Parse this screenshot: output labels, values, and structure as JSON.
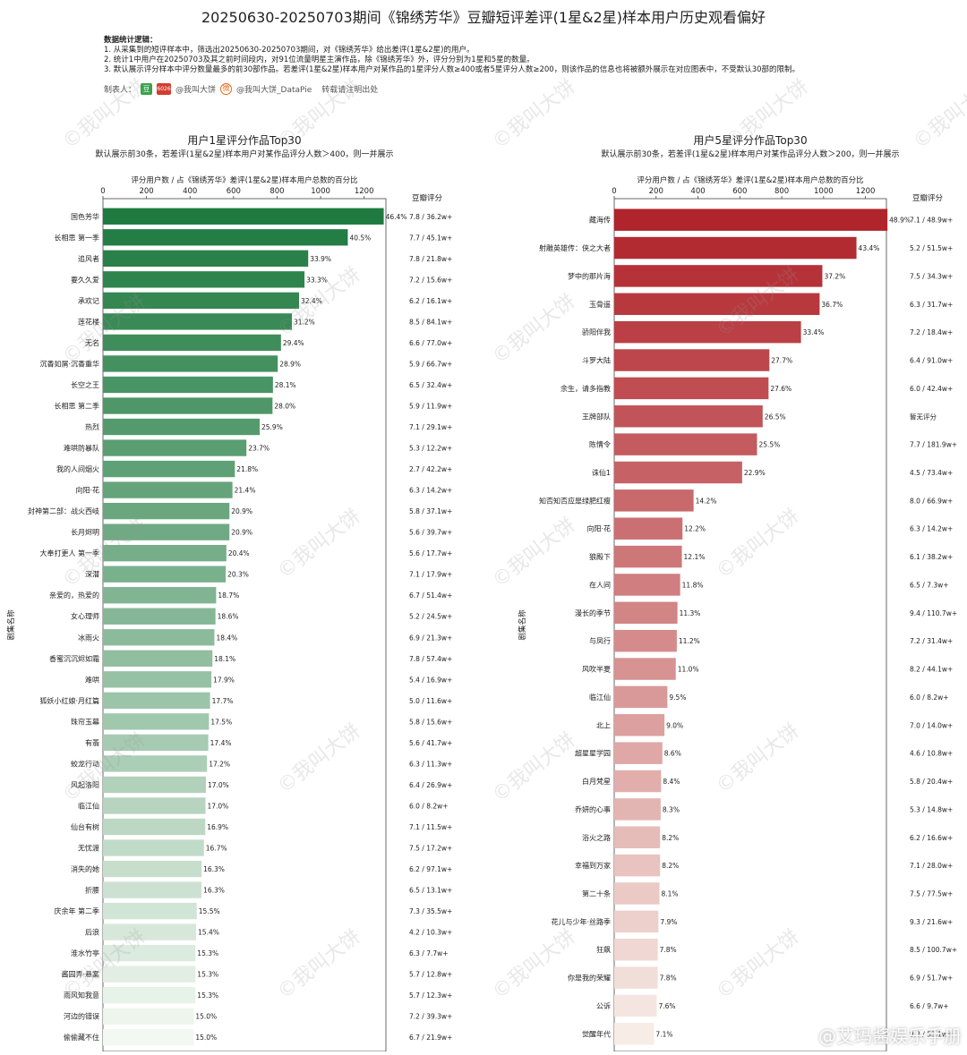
{
  "page": {
    "title": "20250630-20250703期间《锦绣芳华》豆瓣短评差评(1星&2星)样本用户历史观看偏好",
    "notes_head": "数据统计逻辑：",
    "notes": [
      "1. 从采集到的短评样本中，筛选出20250630-20250703期间，对《锦绣芳华》给出差评(1星&2星)的用户。",
      "2. 统计1中用户在20250703及其之前时间段内，对91位流量明星主演作品，除《锦绣芳华》外，评分分别为1星和5星的数量。",
      "3. 默认展示评分样本中评分数量最多的前30部作品。若差评(1星&2星)样本用户对某作品的1星评分人数≥400或者5星评分人数≥200，则该作品的信息也将被额外展示在对应图表中，不受默认30部的限制。"
    ],
    "credit_label": "制表人：",
    "credit_icon1": "豆",
    "credit_icon2": "6026",
    "credit_author": "@我叫大饼",
    "credit_weibo_icon": "微",
    "credit_weibo": "@我叫大饼_DataPie",
    "credit_note": "转载请注明出处",
    "watermark": "©我叫大饼",
    "corner_watermark": "@艾玛酱娱乐手册"
  },
  "chart_data": [
    {
      "type": "bar",
      "orientation": "horizontal",
      "title": "用户1星评分作品Top30",
      "subtitle": "默认展示前30条，若差评(1星&2星)样本用户对某作品评分人数＞400，则一并展示",
      "xlabel": "评分用户数 / 占《锦绣芳华》差评(1星&2星)样本用户总数的百分比",
      "ylabel": "剧集名称",
      "side_header": "豆瓣评分",
      "xlim": [
        0,
        1300
      ],
      "xticks": [
        0,
        200,
        400,
        600,
        800,
        1000,
        1200
      ],
      "color_scheme": "green",
      "color_dark": "#1e7a3f",
      "color_light": "#f2f8f2",
      "categories": [
        "国色芳华",
        "长相思 第一季",
        "追风者",
        "要久久爱",
        "承欢记",
        "莲花楼",
        "无名",
        "沉香如屑·沉香重华",
        "长空之王",
        "长相思 第二季",
        "热烈",
        "难哄防暴队",
        "我的人间烟火",
        "向阳·花",
        "封神第二部：战火西岐",
        "长月烬明",
        "大奉打更人 第一季",
        "深潜",
        "亲爱的，热爱的",
        "女心理师",
        "冰雨火",
        "香蜜沉沉烬如霜",
        "难哄",
        "狐妖小红娘·月红篇",
        "珠帘玉幕",
        "有翡",
        "蛟龙行动",
        "风起洛阳",
        "临江仙",
        "仙台有树",
        "无忧渡",
        "消失的她",
        "折腰",
        "庆余年 第二季",
        "后浪",
        "淮水竹亭",
        "酱园弄·悬案",
        "雨风知我意",
        "河边的错误",
        "偷偷藏不住"
      ],
      "values": [
        1290,
        1125,
        943,
        926,
        901,
        868,
        818,
        803,
        781,
        779,
        720,
        659,
        606,
        595,
        581,
        581,
        567,
        564,
        520,
        517,
        512,
        503,
        498,
        492,
        487,
        484,
        478,
        473,
        471,
        470,
        464,
        453,
        453,
        431,
        428,
        425,
        425,
        425,
        417,
        417
      ],
      "pct_labels": [
        "46.4%",
        "40.5%",
        "33.9%",
        "33.3%",
        "32.4%",
        "31.2%",
        "29.4%",
        "28.9%",
        "28.1%",
        "28.0%",
        "25.9%",
        "23.7%",
        "21.8%",
        "21.4%",
        "20.9%",
        "20.9%",
        "20.4%",
        "20.3%",
        "18.7%",
        "18.6%",
        "18.4%",
        "18.1%",
        "17.9%",
        "17.7%",
        "17.5%",
        "17.4%",
        "17.2%",
        "17.0%",
        "17.0%",
        "16.9%",
        "16.7%",
        "16.3%",
        "16.3%",
        "15.5%",
        "15.4%",
        "15.3%",
        "15.3%",
        "15.3%",
        "15.0%",
        "15.0%"
      ],
      "douban": [
        "7.8 / 36.2w+",
        "7.7 / 45.1w+",
        "7.8 / 21.8w+",
        "7.2 / 15.6w+",
        "6.2 / 16.1w+",
        "8.5 / 84.1w+",
        "6.6 / 77.0w+",
        "5.9 / 66.7w+",
        "6.5 / 32.4w+",
        "5.9 / 11.9w+",
        "7.1 / 29.1w+",
        "5.3 / 12.2w+",
        "2.7 / 42.2w+",
        "6.3 / 14.2w+",
        "5.8 / 37.1w+",
        "5.6 / 39.7w+",
        "5.6 / 17.7w+",
        "7.1 / 17.9w+",
        "6.7 / 51.4w+",
        "5.2 / 24.5w+",
        "6.9 / 21.3w+",
        "7.8 / 57.4w+",
        "5.4 / 16.9w+",
        "5.0 / 11.6w+",
        "5.8 / 15.6w+",
        "5.6 / 41.7w+",
        "6.3 / 11.3w+",
        "6.4 / 26.9w+",
        "6.0 / 8.2w+",
        "7.1 / 11.5w+",
        "7.5 / 17.2w+",
        "6.2 / 97.1w+",
        "6.5 / 13.1w+",
        "7.3 / 35.5w+",
        "4.2 / 10.3w+",
        "6.3 / 7.7w+",
        "5.7 / 12.8w+",
        "5.7 / 12.3w+",
        "7.2 / 39.3w+",
        "6.7 / 21.9w+"
      ]
    },
    {
      "type": "bar",
      "orientation": "horizontal",
      "title": "用户5星评分作品Top30",
      "subtitle": "默认展示前30条，若差评(1星&2星)样本用户对某作品评分人数＞200，则一并展示",
      "xlabel": "评分用户数 / 占《锦绣芳华》差评(1星&2星)样本用户总数的百分比",
      "ylabel": "剧集名称",
      "side_header": "豆瓣评分",
      "xlim": [
        0,
        1300
      ],
      "xticks": [
        0,
        200,
        400,
        600,
        800,
        1000,
        1200
      ],
      "color_scheme": "red",
      "color_dark": "#b0242b",
      "color_light": "#f7ece6",
      "categories": [
        "藏海传",
        "射雕英雄传：侠之大者",
        "梦中的那片海",
        "玉骨遥",
        "骄阳伴我",
        "斗罗大陆",
        "余生，请多指教",
        "王牌部队",
        "陈情令",
        "诛仙1",
        "知否知否应是绿肥红瘦",
        "向阳·花",
        "狼殿下",
        "在人间",
        "漫长的季节",
        "与凤行",
        "风吹半夏",
        "临江仙",
        "北上",
        "超星星学园",
        "白月梵星",
        "乔妍的心事",
        "浴火之路",
        "幸福到万家",
        "第二十条",
        "花儿与少年·丝路季",
        "狂飙",
        "你是我的荣耀",
        "公诉",
        "觉醒年代"
      ],
      "values": [
        1305,
        1157,
        994,
        981,
        892,
        741,
        737,
        709,
        682,
        611,
        379,
        326,
        323,
        315,
        302,
        299,
        294,
        254,
        240,
        230,
        224,
        222,
        219,
        219,
        216,
        211,
        208,
        208,
        203,
        190
      ],
      "pct_labels": [
        "48.9%",
        "43.4%",
        "37.2%",
        "36.7%",
        "33.4%",
        "27.7%",
        "27.6%",
        "26.5%",
        "25.5%",
        "22.9%",
        "14.2%",
        "12.2%",
        "12.1%",
        "11.8%",
        "11.3%",
        "11.2%",
        "11.0%",
        "9.5%",
        "9.0%",
        "8.6%",
        "8.4%",
        "8.3%",
        "8.2%",
        "8.2%",
        "8.1%",
        "7.9%",
        "7.8%",
        "7.8%",
        "7.6%",
        "7.1%"
      ],
      "douban": [
        "7.1 / 48.9w+",
        "5.2 / 51.5w+",
        "7.5 / 34.3w+",
        "6.3 / 31.7w+",
        "7.2 / 18.4w+",
        "6.4 / 91.0w+",
        "6.0 / 42.4w+",
        "暂无评分",
        "7.7 / 181.9w+",
        "4.5 / 73.4w+",
        "8.0 / 66.9w+",
        "6.3 / 14.2w+",
        "6.1 / 38.2w+",
        "6.5 / 7.3w+",
        "9.4 / 110.7w+",
        "7.2 / 31.4w+",
        "8.2 / 44.1w+",
        "6.0 / 8.2w+",
        "7.0 / 14.0w+",
        "4.6 / 10.8w+",
        "5.8 / 20.4w+",
        "5.3 / 14.8w+",
        "6.2 / 16.6w+",
        "7.1 / 28.0w+",
        "7.5 / 77.5w+",
        "9.3 / 21.6w+",
        "8.5 / 100.7w+",
        "6.9 / 51.7w+",
        "6.6 / 9.7w+",
        "9.3 / 53.1w+"
      ]
    }
  ]
}
